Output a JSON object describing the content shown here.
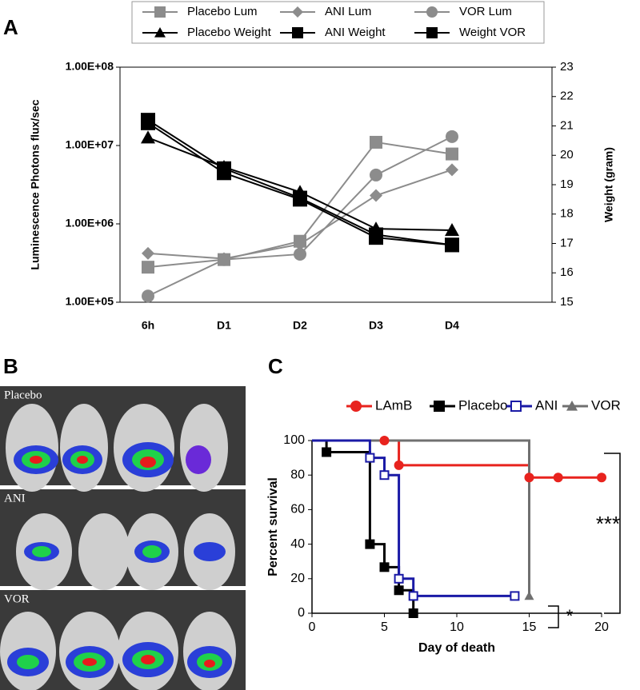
{
  "panel_labels": [
    "A",
    "B",
    "C"
  ],
  "images": {
    "labels": [
      "Placebo",
      "ANI",
      "VOR"
    ]
  },
  "chart_data": [
    {
      "type": "line",
      "categories": [
        "6h",
        "D1",
        "D2",
        "D3",
        "D4"
      ],
      "ylabel": "Luminescence Photons flux/sec",
      "y2label": "Weight (gram)",
      "log_y": true,
      "ylim": [
        100000,
        100000000
      ],
      "yticks": [
        {
          "value": 100000,
          "label": "1.00E+05"
        },
        {
          "value": 1000000,
          "label": "1.00E+06"
        },
        {
          "value": 10000000,
          "label": "1.00E+07"
        },
        {
          "value": 100000000,
          "label": "1.00E+08"
        }
      ],
      "y2lim": [
        15,
        23
      ],
      "y2ticks": [
        15,
        16,
        17,
        18,
        19,
        20,
        21,
        22,
        23
      ],
      "series": [
        {
          "name": "Placebo Lum",
          "color": "#8c8c8c",
          "marker": "square",
          "values": [
            280000,
            350000,
            600000,
            11000000,
            7800000
          ]
        },
        {
          "name": "ANI Lum",
          "color": "#8c8c8c",
          "marker": "diamond",
          "values": [
            420000,
            360000,
            550000,
            2300000,
            4900000
          ]
        },
        {
          "name": "VOR Lum",
          "color": "#8c8c8c",
          "marker": "circle",
          "values": [
            120000,
            350000,
            410000,
            4200000,
            13000000
          ]
        },
        {
          "name": "Placebo Weight",
          "color": "#000000",
          "marker": "triangle",
          "axis": "y2",
          "values": [
            20.6,
            19.6,
            18.75,
            17.5,
            17.45
          ]
        },
        {
          "name": "ANI Weight",
          "color": "#000000",
          "marker": "square",
          "axis": "y2",
          "values": [
            21.2,
            19.55,
            18.55,
            17.3,
            16.95
          ]
        },
        {
          "name": "Weight VOR",
          "color": "#000000",
          "marker": "square",
          "axis": "y2",
          "values": [
            21.1,
            19.4,
            18.5,
            17.2,
            16.95
          ]
        }
      ]
    },
    {
      "type": "step",
      "xlabel": "Day of death",
      "ylabel": "Percent survival",
      "xlim": [
        0,
        20
      ],
      "xticks": [
        0,
        5,
        10,
        15,
        20
      ],
      "ylim": [
        0,
        100
      ],
      "yticks": [
        0,
        20,
        40,
        60,
        80,
        100
      ],
      "annotations": [
        "***",
        "*"
      ],
      "series": [
        {
          "name": "LAmB",
          "color": "#e8231e",
          "marker": "circle",
          "x": [
            5,
            6,
            15,
            17,
            20
          ],
          "values": [
            100,
            85.7,
            78.6,
            78.6,
            78.6
          ]
        },
        {
          "name": "Placebo",
          "color": "#000000",
          "marker": "square",
          "x": [
            1,
            4,
            5,
            6,
            7
          ],
          "values": [
            93.3,
            40,
            26.7,
            13.3,
            0
          ]
        },
        {
          "name": "ANI",
          "color": "#1a1aa6",
          "marker": "open-square",
          "x": [
            4,
            5,
            6,
            7,
            14
          ],
          "values": [
            90,
            80,
            20,
            10,
            10
          ]
        },
        {
          "name": "VOR",
          "color": "#707070",
          "marker": "triangle",
          "x": [
            15
          ],
          "values": [
            10
          ]
        }
      ]
    }
  ]
}
